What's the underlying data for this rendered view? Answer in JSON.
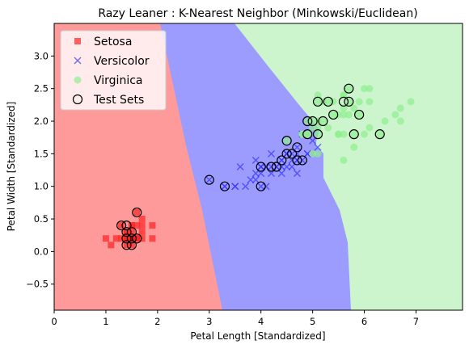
{
  "chart_data": {
    "type": "scatter",
    "title": "Razy Leaner : K-Nearest Neighbor (Minkowski/Euclidean)",
    "x_label": "Petal Length [Standardized]",
    "y_label": "Petal Width [Standardized]",
    "xlim": [
      0,
      7.9
    ],
    "ylim": [
      -0.9,
      3.5
    ],
    "xticks": [
      0,
      1,
      2,
      3,
      4,
      5,
      6,
      7
    ],
    "yticks": [
      {
        "value": -0.5,
        "label": "−0.5"
      },
      {
        "value": 0,
        "label": "0.0"
      },
      0.5,
      {
        "value": 1,
        "label": "1.0"
      },
      1.5,
      {
        "value": 2,
        "label": "2.0"
      },
      2.5,
      {
        "value": 3,
        "label": "3.0"
      }
    ],
    "legend": "upper left",
    "series": [
      {
        "name": "Setosa",
        "color": "#ff2222",
        "marker": "square",
        "x": [
          1.4,
          1.4,
          1.3,
          1.5,
          1.4,
          1.7,
          1.4,
          1.5,
          1.4,
          1.5,
          1.5,
          1.6,
          1.4,
          1.1,
          1.2,
          1.5,
          1.3,
          1.4,
          1.7,
          1.5,
          1.7,
          1.5,
          1.0,
          1.7,
          1.9,
          1.6,
          1.6,
          1.5,
          1.4,
          1.6,
          1.9,
          1.6
        ],
        "y": [
          0.2,
          0.2,
          0.2,
          0.2,
          0.2,
          0.4,
          0.3,
          0.2,
          0.2,
          0.1,
          0.2,
          0.2,
          0.1,
          0.1,
          0.2,
          0.4,
          0.4,
          0.3,
          0.3,
          0.3,
          0.2,
          0.4,
          0.2,
          0.5,
          0.2,
          0.2,
          0.4,
          0.2,
          0.2,
          0.2,
          0.4,
          0.6
        ]
      },
      {
        "name": "Versicolor",
        "color": "#3333ff",
        "marker": "x",
        "x": [
          4.7,
          4.5,
          4.9,
          4.0,
          4.6,
          4.5,
          4.7,
          3.3,
          4.6,
          3.9,
          3.5,
          4.2,
          4.0,
          4.7,
          3.6,
          4.4,
          4.5,
          4.1,
          4.5,
          3.9,
          4.8,
          4.0,
          4.9,
          4.7,
          4.3,
          4.4,
          4.8,
          5.0,
          4.5,
          3.5,
          3.8,
          3.7,
          3.9,
          5.1,
          4.5,
          4.7,
          4.4,
          4.1,
          4.0,
          4.4,
          4.6,
          4.0,
          3.3,
          4.2,
          4.2,
          4.3,
          3.0,
          4.1
        ],
        "y": [
          1.4,
          1.5,
          1.5,
          1.3,
          1.5,
          1.3,
          1.6,
          1.0,
          1.3,
          1.4,
          1.0,
          1.5,
          1.0,
          1.4,
          1.3,
          1.4,
          1.5,
          1.0,
          1.5,
          1.1,
          1.8,
          1.3,
          1.5,
          1.2,
          1.3,
          1.4,
          1.4,
          1.7,
          1.5,
          1.0,
          1.1,
          1.0,
          1.2,
          1.6,
          1.5,
          1.5,
          1.3,
          1.3,
          1.3,
          1.2,
          1.4,
          1.2,
          1.0,
          1.3,
          1.2,
          1.3,
          1.1,
          1.3
        ]
      },
      {
        "name": "Virginica",
        "color": "#90ee90",
        "marker": "circle",
        "x": [
          6.0,
          5.1,
          5.9,
          5.6,
          5.8,
          6.6,
          4.5,
          6.3,
          5.8,
          6.1,
          5.1,
          5.3,
          5.5,
          5.0,
          5.1,
          5.3,
          5.5,
          6.7,
          6.9,
          5.0,
          5.7,
          4.9,
          6.7,
          4.9,
          5.7,
          6.0,
          4.8,
          4.9,
          5.6,
          5.8,
          6.1,
          6.4,
          5.6,
          5.1,
          5.6,
          6.1,
          5.6,
          5.5,
          4.8,
          5.4,
          5.6,
          5.1,
          5.9,
          5.7,
          5.2,
          5.0,
          5.2,
          5.4,
          5.1
        ],
        "y": [
          2.5,
          1.9,
          2.1,
          1.8,
          2.2,
          2.1,
          1.7,
          1.8,
          1.8,
          2.5,
          2.0,
          1.9,
          2.1,
          2.0,
          2.4,
          2.3,
          1.8,
          2.2,
          2.3,
          1.5,
          2.3,
          2.0,
          2.0,
          1.8,
          2.1,
          1.8,
          1.8,
          1.8,
          2.1,
          1.6,
          1.9,
          2.0,
          2.2,
          1.5,
          1.4,
          2.3,
          2.4,
          1.8,
          1.8,
          2.1,
          2.4,
          2.3,
          2.3,
          2.5,
          2.3,
          1.9,
          2.0,
          2.3,
          1.8
        ]
      },
      {
        "name": "Test Sets",
        "color": "#000000",
        "marker": "open-circle",
        "x": [
          1.6,
          1.4,
          1.3,
          1.5,
          1.4,
          1.5,
          1.4,
          1.5,
          1.6,
          1.4,
          3.0,
          3.3,
          4.0,
          4.0,
          4.2,
          4.3,
          4.4,
          4.5,
          4.6,
          4.7,
          4.5,
          4.7,
          4.8,
          4.9,
          5.0,
          5.1,
          5.2,
          5.3,
          5.4,
          5.6,
          5.7,
          5.7,
          5.8,
          5.9,
          6.3,
          5.1,
          4.9
        ],
        "y": [
          0.6,
          0.4,
          0.4,
          0.3,
          0.2,
          0.2,
          0.1,
          0.1,
          0.2,
          0.3,
          1.1,
          1.0,
          1.0,
          1.3,
          1.3,
          1.3,
          1.4,
          1.5,
          1.5,
          1.6,
          1.7,
          1.4,
          1.4,
          1.8,
          2.0,
          2.3,
          2.0,
          2.3,
          2.1,
          2.3,
          2.5,
          2.3,
          1.8,
          2.1,
          1.8,
          1.8,
          2.0
        ]
      }
    ]
  }
}
